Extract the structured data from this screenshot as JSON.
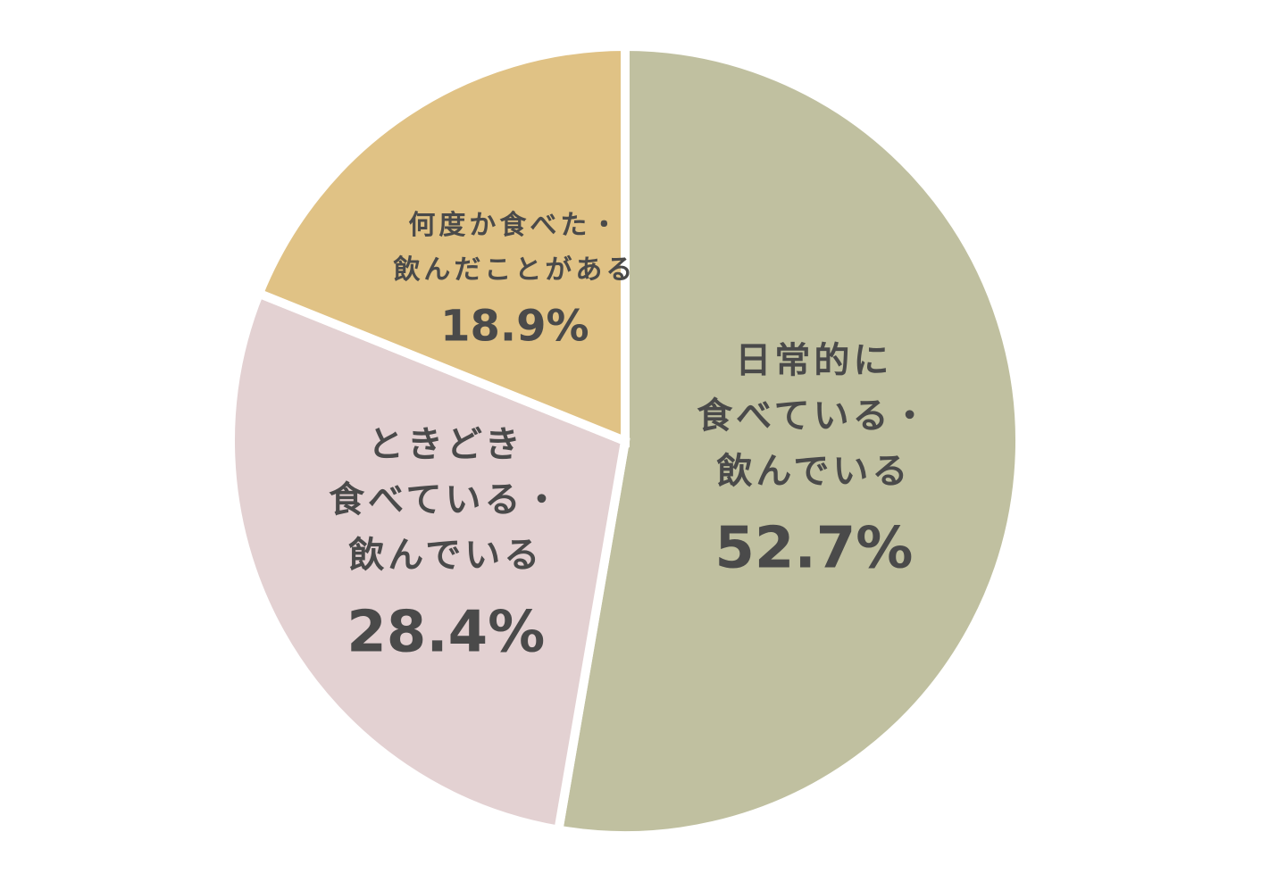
{
  "chart_data": {
    "type": "pie",
    "categories": [
      [
        "日常的に",
        "食べている・",
        "飲んでいる"
      ],
      [
        "ときどき",
        "食べている・",
        "飲んでいる"
      ],
      [
        "何度か食べた・",
        "飲んだことがある"
      ]
    ],
    "values": [
      52.7,
      28.4,
      18.9
    ],
    "value_labels": [
      "52.7%",
      "28.4%",
      "18.9%"
    ],
    "colors": [
      "#c0c0a0",
      "#e3d1d2",
      "#e0c285"
    ]
  }
}
